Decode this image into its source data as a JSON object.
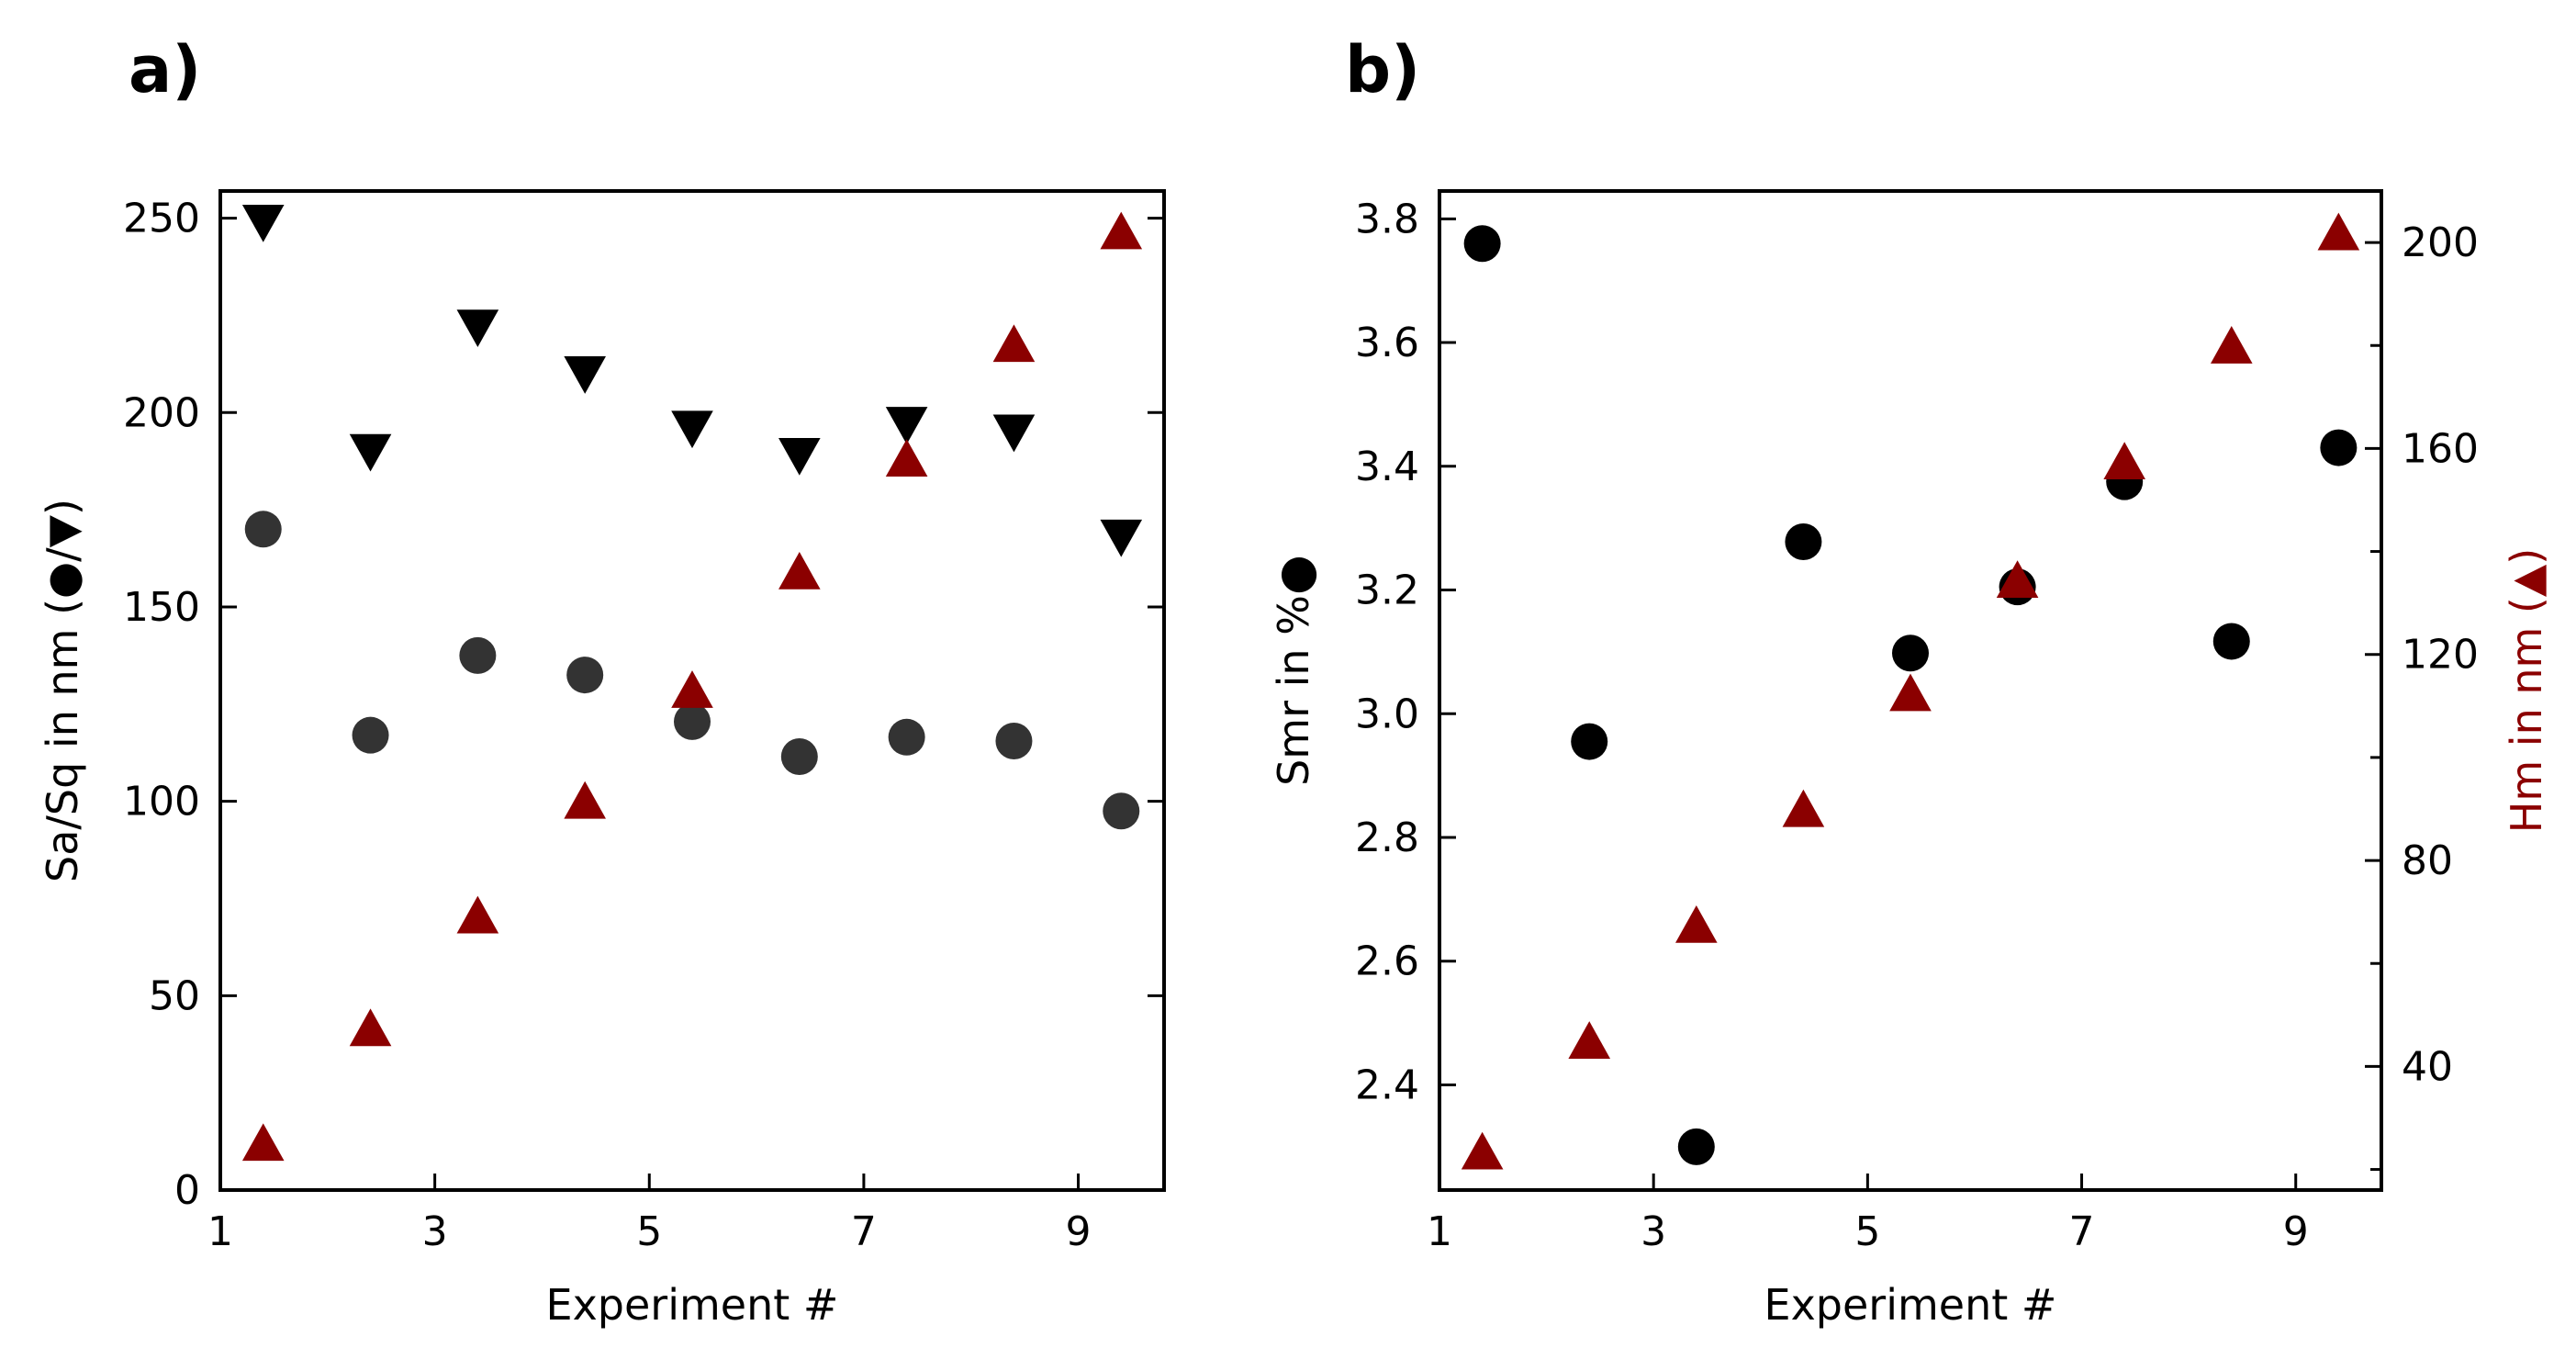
{
  "figure": {
    "colors": {
      "black": "#000000",
      "dark_gray": "#333333",
      "dark_red": "#8b0000"
    }
  },
  "chart_data": [
    {
      "type": "scatter",
      "panel_label": "a)",
      "xlabel": "Experiment #",
      "ylabel_main": "Sa/Sq in nm (",
      "ylabel_circle": "●",
      "ylabel_slash": "/",
      "ylabel_tri": "▼",
      "ylabel_close": ")",
      "xlim": [
        1,
        9.8
      ],
      "ylim": [
        0,
        257
      ],
      "xticks": [
        1,
        3,
        5,
        7,
        9
      ],
      "yticks": [
        0,
        50,
        100,
        150,
        200,
        250
      ],
      "series": [
        {
          "name": "Sa",
          "marker": "circle",
          "color": "#333333",
          "x": [
            1.4,
            2.4,
            3.4,
            4.4,
            5.4,
            6.4,
            7.4,
            8.4,
            9.4
          ],
          "y": [
            170,
            117,
            137.5,
            132.5,
            120.5,
            111.5,
            116.5,
            115.5,
            97.5
          ]
        },
        {
          "name": "Sq",
          "marker": "triangle-down",
          "color": "#000000",
          "x": [
            1.4,
            2.4,
            3.4,
            4.4,
            5.4,
            6.4,
            7.4,
            8.4,
            9.4
          ],
          "y": [
            249.5,
            190.5,
            222.5,
            210.5,
            196.5,
            189.5,
            197.5,
            195.5,
            168.5
          ]
        },
        {
          "name": "Hm",
          "marker": "triangle-up",
          "color": "#8b0000",
          "x": [
            1.4,
            2.4,
            3.4,
            4.4,
            5.4,
            6.4,
            7.4,
            8.4,
            9.4
          ],
          "y": [
            11.5,
            41,
            70,
            99.5,
            128,
            158.5,
            187.5,
            217,
            246
          ]
        }
      ]
    },
    {
      "type": "scatter",
      "panel_label": "b)",
      "xlabel": "Experiment #",
      "ylabel_left": "Smr in %",
      "ylabel_left_marker": "●",
      "ylabel_right": "Hm in nm (",
      "ylabel_right_marker": "▲",
      "ylabel_right_close": ")",
      "xlim": [
        1,
        9.8
      ],
      "ylim_left": [
        2.23,
        3.845
      ],
      "ylim_right": [
        16,
        210
      ],
      "xticks": [
        1,
        3,
        5,
        7,
        9
      ],
      "yticks_left": [
        2.4,
        2.6,
        2.8,
        3.0,
        3.2,
        3.4,
        3.6,
        3.8
      ],
      "yticks_left_labels": [
        "2.4",
        "2.6",
        "2.8",
        "3.0",
        "3.2",
        "3.4",
        "3.6",
        "3.8"
      ],
      "yticks_right": [
        40,
        80,
        120,
        160,
        200
      ],
      "series": [
        {
          "name": "Smr",
          "axis": "left",
          "marker": "circle",
          "color": "#000000",
          "x": [
            1.4,
            2.4,
            3.4,
            4.4,
            5.4,
            6.4,
            7.4,
            8.4,
            9.4
          ],
          "y": [
            3.76,
            2.955,
            2.3,
            3.278,
            3.098,
            3.205,
            3.375,
            3.117,
            3.43
          ]
        },
        {
          "name": "Hm",
          "axis": "right",
          "marker": "triangle-up",
          "color": "#8b0000",
          "x": [
            1.4,
            2.4,
            3.4,
            4.4,
            5.4,
            6.4,
            7.4,
            8.4,
            9.4
          ],
          "y": [
            23,
            44.5,
            67,
            89.5,
            112,
            134,
            157,
            179.5,
            201.5
          ]
        }
      ]
    }
  ]
}
